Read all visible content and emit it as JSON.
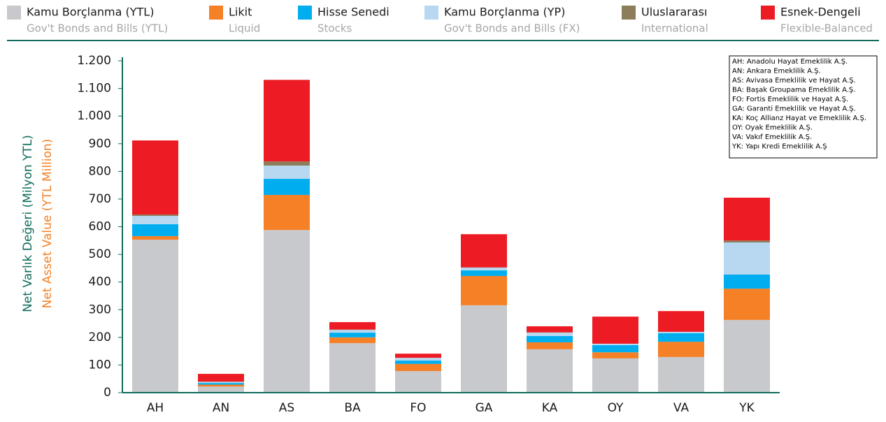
{
  "chart_data": {
    "type": "stacked_bar",
    "ylabel": "Net Varlık Değeri (Milyon YTL)",
    "ylabel_en": "Net Asset Value (YTL Million)",
    "categories": [
      "AH",
      "AN",
      "AS",
      "BA",
      "FO",
      "GA",
      "KA",
      "OY",
      "VA",
      "YK"
    ],
    "series": [
      {
        "name": "Kamu Borçlanma (YTL)",
        "name_en": "Gov't Bonds and Bills (YTL)",
        "color": "#c8c9cc",
        "values": [
          553,
          22,
          588,
          179,
          78,
          316,
          157,
          124,
          129,
          263
        ]
      },
      {
        "name": "Likit",
        "name_en": "Liquid",
        "color": "#f58025",
        "values": [
          13,
          7,
          127,
          21,
          26,
          106,
          25,
          22,
          55,
          113
        ]
      },
      {
        "name": "Hisse Senedi",
        "name_en": "Stocks",
        "color": "#00aeef",
        "values": [
          43,
          6,
          58,
          17,
          12,
          20,
          23,
          26,
          31,
          51
        ]
      },
      {
        "name": "Kamu Borçlanma (YP)",
        "name_en": "Gov't Bonds and Bills (FX)",
        "color": "#b8d8f2",
        "values": [
          30,
          4,
          48,
          10,
          10,
          10,
          12,
          5,
          5,
          116
        ]
      },
      {
        "name": "Uluslararası",
        "name_en": "International",
        "color": "#8c7e5a",
        "values": [
          5,
          1,
          15,
          1,
          0,
          1,
          1,
          0,
          0,
          7
        ]
      },
      {
        "name": "Esnek-Dengeli",
        "name_en": "Flexible-Balanced",
        "color": "#ed1c24",
        "values": [
          268,
          28,
          295,
          27,
          15,
          120,
          22,
          98,
          75,
          155
        ]
      }
    ],
    "ylim": [
      0,
      1200
    ],
    "yticks": [
      0,
      100,
      200,
      300,
      400,
      500,
      600,
      700,
      800,
      900,
      {
        "value": 1000,
        "label": "1.000"
      },
      {
        "value": 1100,
        "label": "1.100"
      },
      {
        "value": 1200,
        "label": "1.200"
      }
    ],
    "notes": [
      "AH: Anadolu Hayat Emeklilik A.Ş.",
      "AN: Ankara Emeklilik A.Ş.",
      "AS: Avivasa Emeklilik ve Hayat A.Ş.",
      "BA: Başak Groupama Emeklilik A.Ş.",
      "FO: Fortis Emeklilik ve Hayat A.Ş.",
      "GA: Garanti Emeklilik ve Hayat A.Ş.",
      "KA: Koç Allianz Hayat ve Emeklilik A.Ş.",
      "OY: Oyak Emeklilik A.Ş.",
      "VA: Vakıf Emeklilik A.Ş.",
      "YK: Yapı Kredi Emeklilik A.Ş"
    ]
  }
}
